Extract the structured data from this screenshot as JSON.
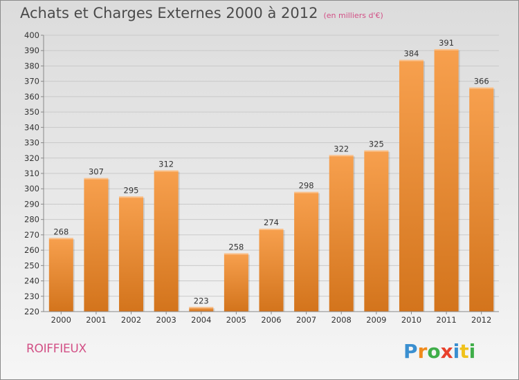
{
  "header": {
    "title": "Achats et Charges Externes 2000 à 2012",
    "subtitle": "(en milliers d'€)"
  },
  "footer": {
    "place": "ROIFFIEUX",
    "logo_text": "Proxiti"
  },
  "colors": {
    "bar_light": "#f7a04e",
    "bar_dark": "#d3741c",
    "axis": "#888888",
    "grid": "#c9c9c9",
    "text": "#333333",
    "accent": "#d24f85"
  },
  "chart_data": {
    "type": "bar",
    "title": "Achats et Charges Externes 2000 à 2012",
    "subtitle": "(en milliers d'€)",
    "xlabel": "",
    "ylabel": "",
    "categories": [
      "2000",
      "2001",
      "2002",
      "2003",
      "2004",
      "2005",
      "2006",
      "2007",
      "2008",
      "2009",
      "2010",
      "2011",
      "2012"
    ],
    "values": [
      268,
      307,
      295,
      312,
      223,
      258,
      274,
      298,
      322,
      325,
      384,
      391,
      366
    ],
    "ylim": [
      220,
      400
    ],
    "ytick_step": 10,
    "grid": true,
    "legend": "none",
    "data_labels": true
  }
}
